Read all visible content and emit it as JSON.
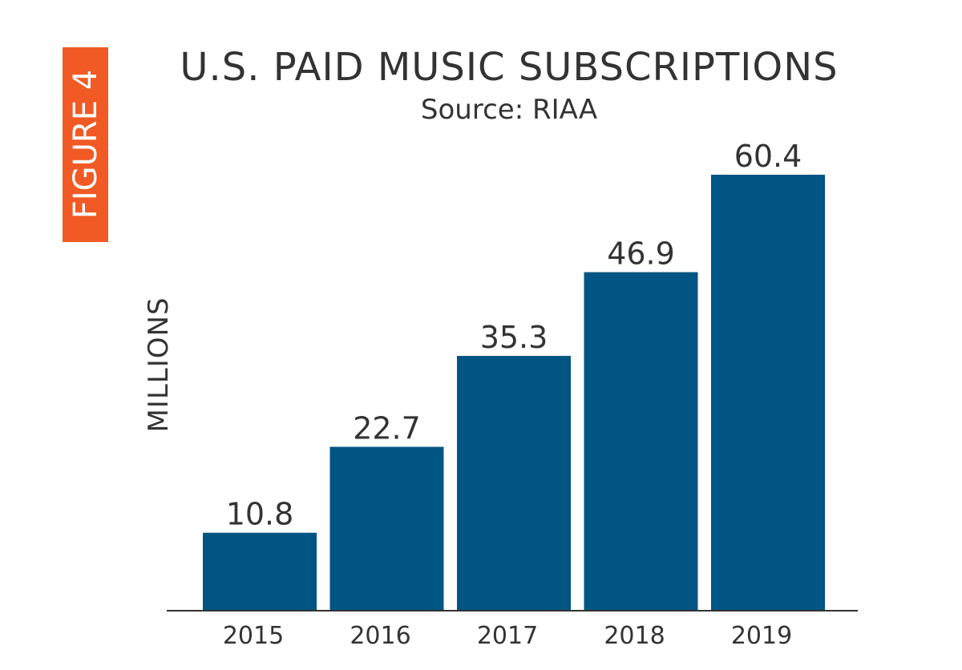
{
  "figure_tag": {
    "label": "FIGURE 4",
    "color": "#f15a24"
  },
  "colors": {
    "bar": "#005582",
    "axis": "#333333",
    "text": "#333333"
  },
  "chart_data": {
    "type": "bar",
    "title": "U.S. PAID MUSIC SUBSCRIPTIONS",
    "subtitle": "Source: RIAA",
    "xlabel": "",
    "ylabel": "MILLIONS",
    "categories": [
      "2015",
      "2016",
      "2017",
      "2018",
      "2019"
    ],
    "values": [
      10.8,
      22.7,
      35.3,
      46.9,
      60.4
    ],
    "value_labels": [
      "10.8",
      "22.7",
      "35.3",
      "46.9",
      "60.4"
    ],
    "ylim": [
      0,
      70
    ],
    "grid": false,
    "legend": "none"
  }
}
